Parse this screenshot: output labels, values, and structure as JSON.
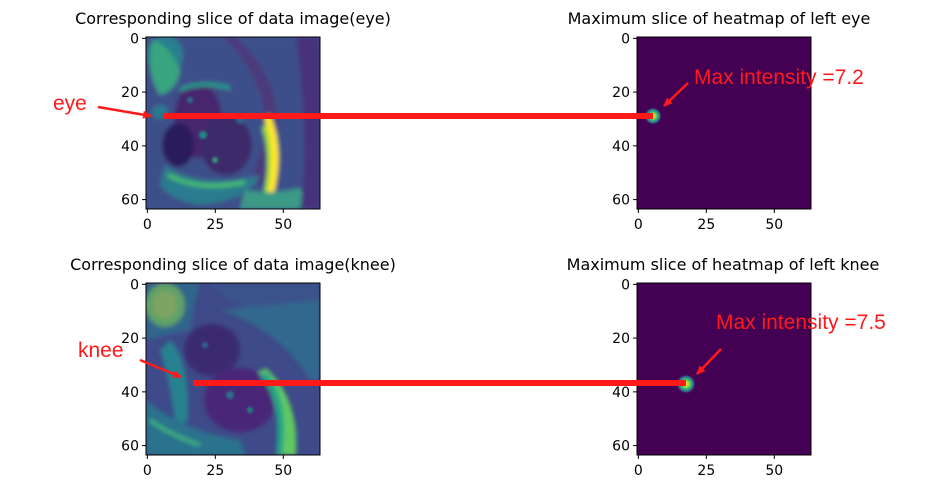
{
  "figure": {
    "colors": {
      "viridis_dark": "#440154",
      "viridis_blue": "#3b528b",
      "viridis_teal": "#21918c",
      "viridis_green": "#5ec962",
      "viridis_yellow": "#fde725",
      "annotation_red": "#ff1a1a"
    }
  },
  "chart_data": [
    {
      "type": "heatmap",
      "title": "Corresponding slice of data image(eye)",
      "xlim": [
        0,
        63
      ],
      "ylim": [
        63,
        0
      ],
      "xticks": [
        "0",
        "25",
        "50"
      ],
      "yticks": [
        "0",
        "20",
        "40",
        "60"
      ],
      "colormap": "viridis",
      "annotation": {
        "label": "eye",
        "point": [
          4,
          29
        ]
      },
      "connector": {
        "from": [
          6,
          29
        ],
        "to_panel": 1,
        "to": [
          6,
          29
        ]
      }
    },
    {
      "type": "heatmap",
      "title": "Maximum slice of heatmap of left eye",
      "xlim": [
        0,
        63
      ],
      "ylim": [
        63,
        0
      ],
      "xticks": [
        "0",
        "25",
        "50"
      ],
      "yticks": [
        "0",
        "20",
        "40",
        "60"
      ],
      "colormap": "viridis",
      "peak": {
        "x": 6,
        "y": 29,
        "value": 7.2
      },
      "annotation": {
        "label": "Max intensity =7.2",
        "point": [
          7,
          27
        ]
      }
    },
    {
      "type": "heatmap",
      "title": "Corresponding slice of data image(knee)",
      "xlim": [
        0,
        63
      ],
      "ylim": [
        63,
        0
      ],
      "xticks": [
        "0",
        "25",
        "50"
      ],
      "yticks": [
        "0",
        "20",
        "40",
        "60"
      ],
      "colormap": "viridis",
      "annotation": {
        "label": "knee",
        "point": [
          13,
          36
        ]
      },
      "connector": {
        "from": [
          17,
          37
        ],
        "to_panel": 3,
        "to": [
          17,
          37
        ]
      }
    },
    {
      "type": "heatmap",
      "title": "Maximum slice of heatmap of left knee",
      "xlim": [
        0,
        63
      ],
      "ylim": [
        63,
        0
      ],
      "xticks": [
        "0",
        "25",
        "50"
      ],
      "yticks": [
        "0",
        "20",
        "40",
        "60"
      ],
      "colormap": "viridis",
      "peak": {
        "x": 18,
        "y": 37,
        "value": 7.5
      },
      "annotation": {
        "label": "Max intensity =7.5",
        "point": [
          19,
          34
        ]
      }
    }
  ]
}
